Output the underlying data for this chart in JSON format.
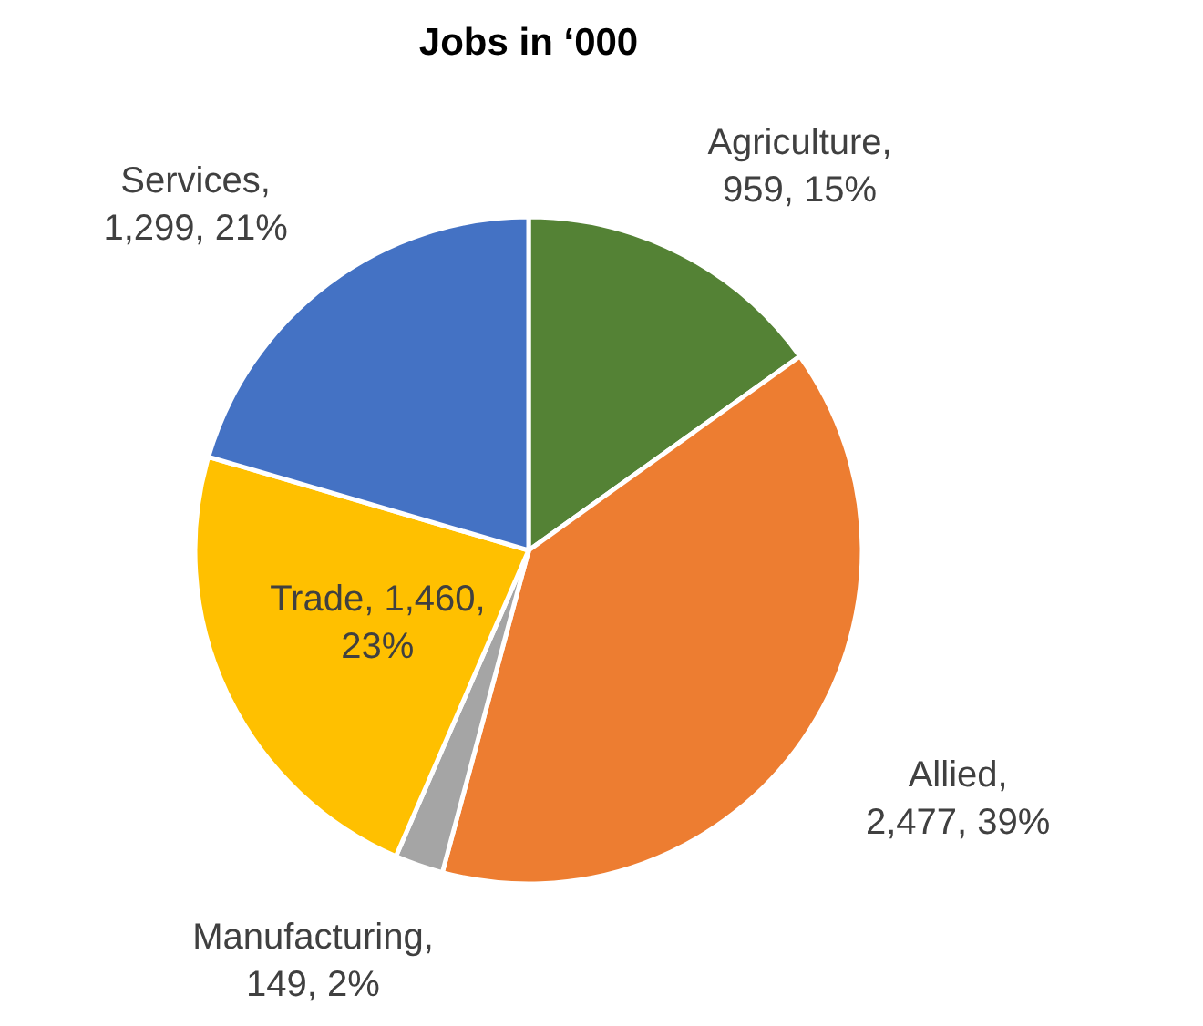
{
  "chart_data": {
    "type": "pie",
    "title": "Jobs in ‘000",
    "categories": [
      "Agriculture",
      "Allied",
      "Manufacturing",
      "Trade",
      "Services"
    ],
    "values": [
      959,
      2477,
      149,
      1460,
      1299
    ],
    "colors": [
      "#548235",
      "#ed7d31",
      "#a5a5a5",
      "#ffc000",
      "#4472c4"
    ],
    "value_labels": [
      ", 959, 15%",
      ", 2,477, 39%",
      ", 149, 2%",
      ", 1,460, 23%",
      ", 1,299, 21%"
    ],
    "legend": false
  }
}
